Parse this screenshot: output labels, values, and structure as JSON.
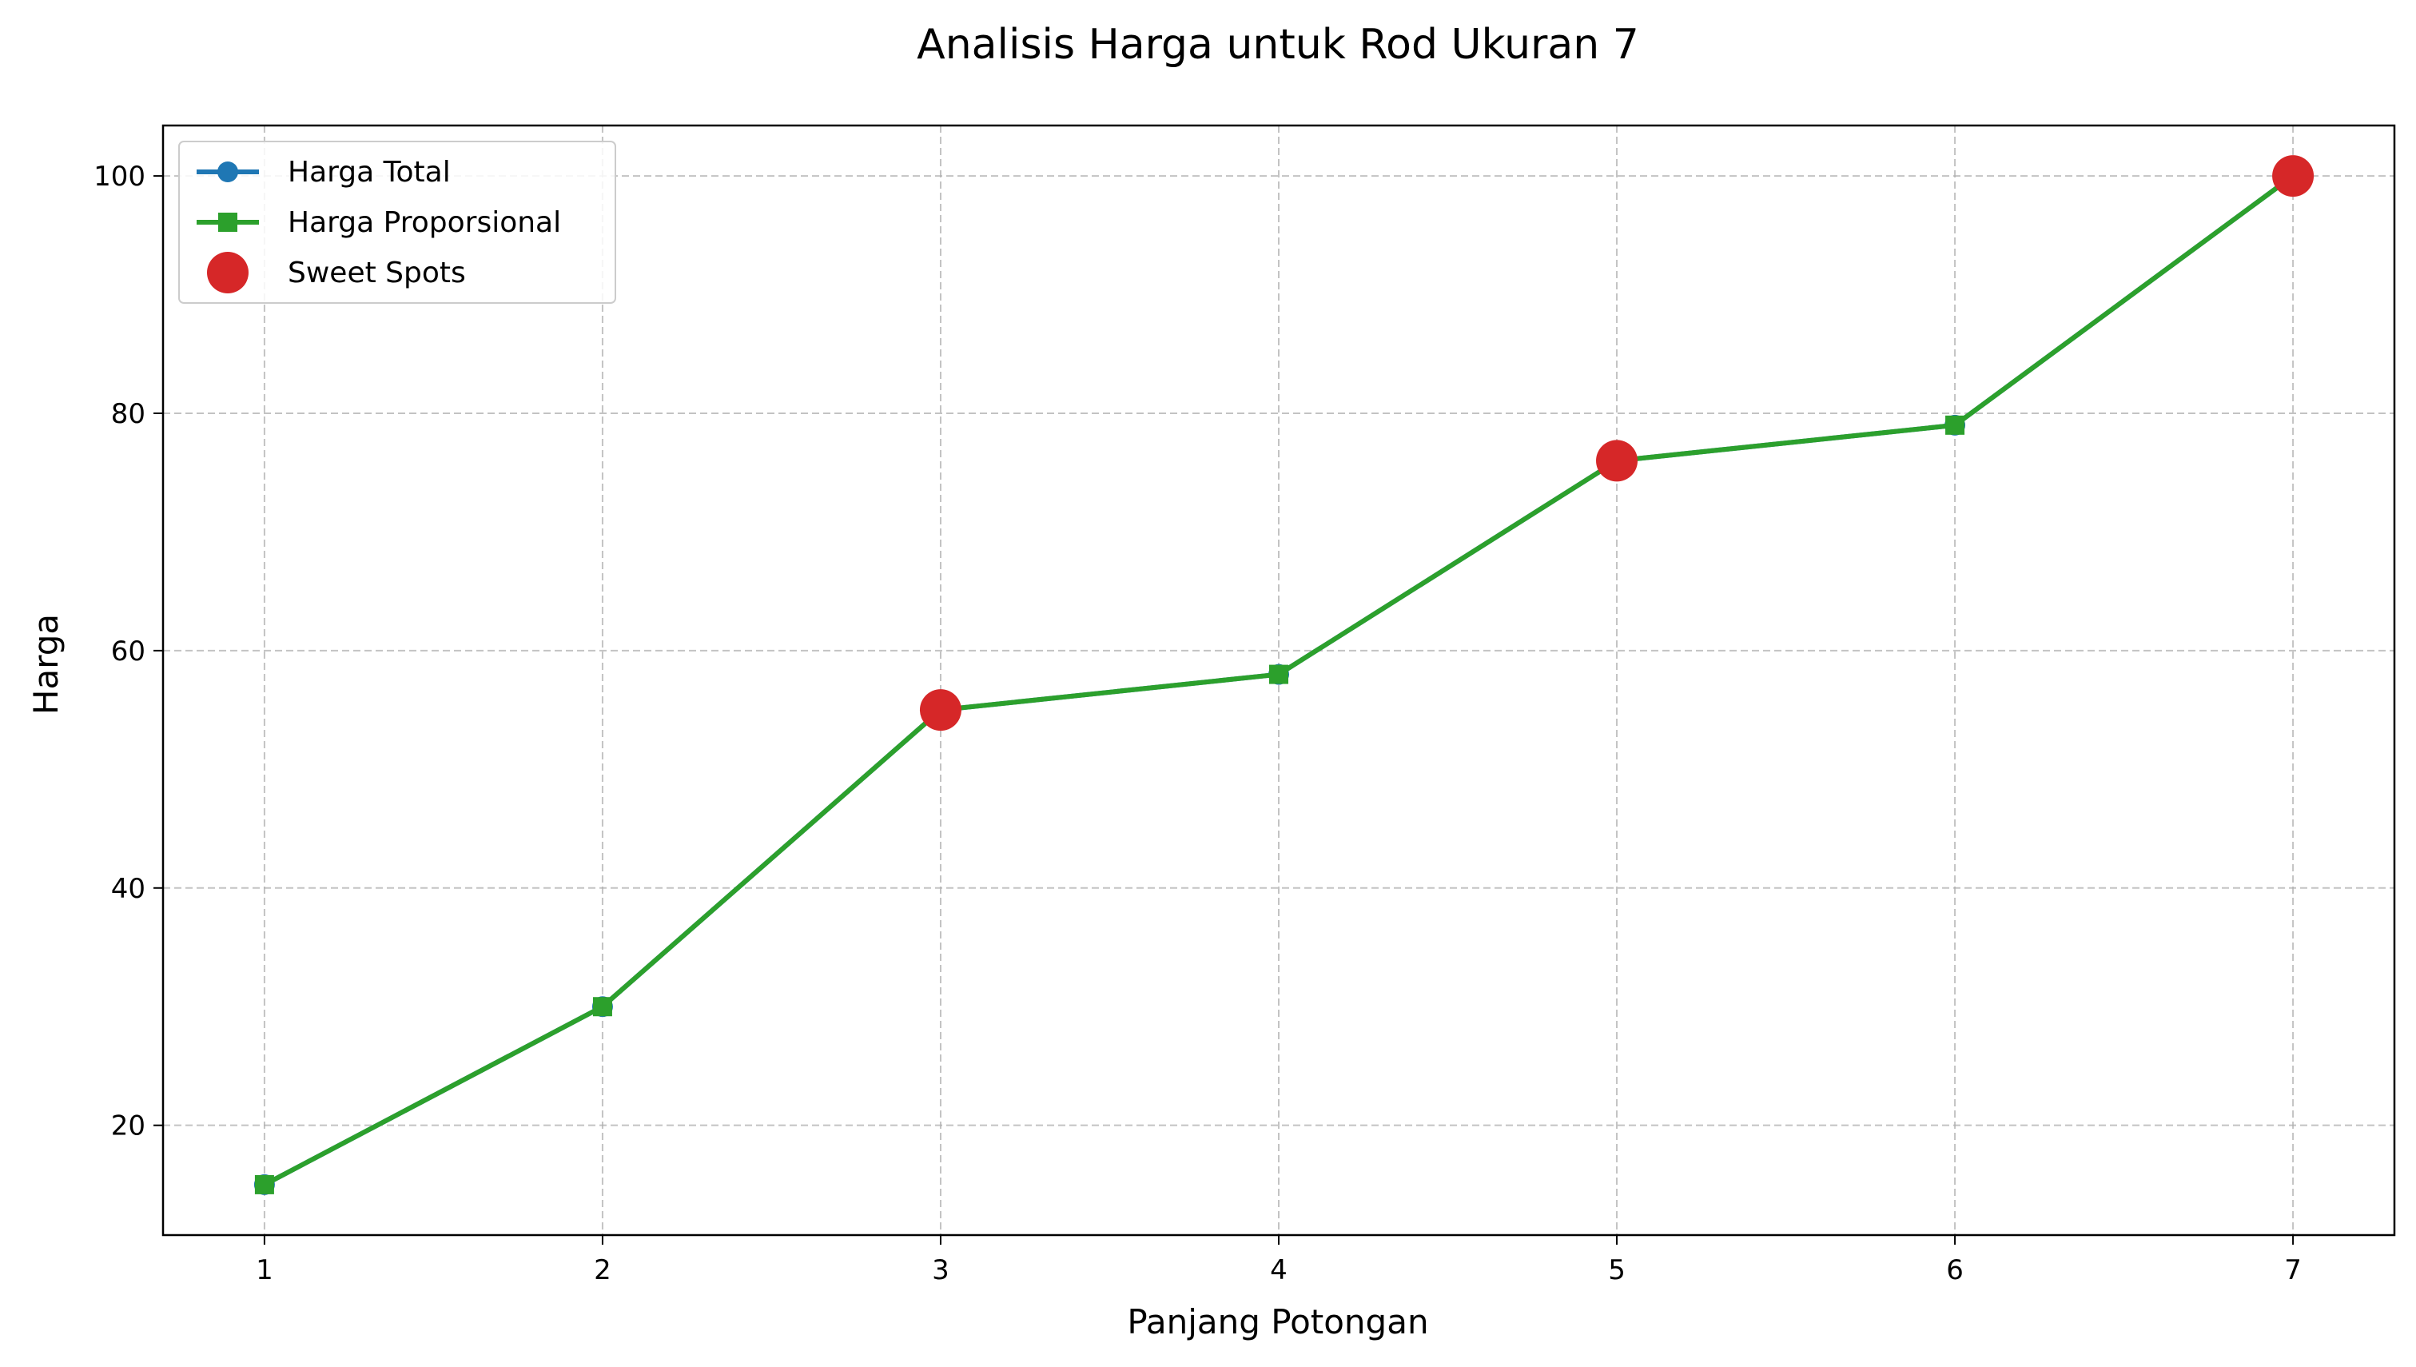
{
  "chart_data": {
    "type": "line",
    "title": "Analisis Harga untuk Rod Ukuran 7",
    "xlabel": "Panjang Potongan",
    "ylabel": "Harga",
    "x": [
      1,
      2,
      3,
      4,
      5,
      6,
      7
    ],
    "xlim": [
      0.7,
      7.3
    ],
    "ylim": [
      10.75,
      104.25
    ],
    "xticks": [
      1,
      2,
      3,
      4,
      5,
      6,
      7
    ],
    "yticks": [
      20,
      40,
      60,
      80,
      100
    ],
    "grid": true,
    "legend_position": "top-left",
    "series": [
      {
        "name": "Harga Total",
        "kind": "line",
        "marker": "circle",
        "color": "#1f77b4",
        "values": [
          15,
          30,
          55,
          58,
          76,
          79,
          100
        ]
      },
      {
        "name": "Harga Proporsional",
        "kind": "line",
        "marker": "square",
        "color": "#2ca02c",
        "values": [
          15,
          30,
          55,
          58,
          76,
          79,
          100
        ]
      },
      {
        "name": "Sweet Spots",
        "kind": "scatter",
        "marker": "circle",
        "color": "#d62728",
        "x": [
          3,
          5,
          7
        ],
        "values": [
          55,
          76,
          100
        ]
      }
    ]
  }
}
